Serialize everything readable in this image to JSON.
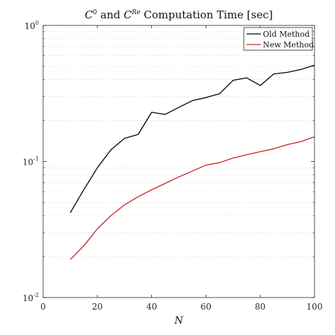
{
  "chart_data": {
    "type": "line",
    "title": {
      "p1": "C",
      "sup1": "0",
      "p2": " and ",
      "p3": "C",
      "sup2": "Re",
      "p4": " Computation Time [sec]"
    },
    "xlabel": "N",
    "ylabel": "",
    "xlim": [
      0,
      100
    ],
    "ylim": [
      0.01,
      1
    ],
    "yscale": "log",
    "x_ticks": [
      0,
      20,
      40,
      60,
      80,
      100
    ],
    "x_tick_labels": [
      "0",
      "20",
      "40",
      "60",
      "80",
      "100"
    ],
    "y_ticks": [
      {
        "value": 0.01,
        "base": "10",
        "exp": "-2"
      },
      {
        "value": 0.1,
        "base": "10",
        "exp": "-1"
      },
      {
        "value": 1,
        "base": "10",
        "exp": "0"
      }
    ],
    "grid": "minor-y",
    "legend_position": "top-right",
    "x": [
      10,
      15,
      20,
      25,
      30,
      35,
      40,
      45,
      50,
      55,
      60,
      65,
      70,
      75,
      80,
      85,
      90,
      95,
      100
    ],
    "series": [
      {
        "name": "Old Method",
        "color": "#000000",
        "values": [
          0.042,
          0.062,
          0.09,
          0.122,
          0.148,
          0.158,
          0.23,
          0.222,
          0.25,
          0.28,
          0.295,
          0.315,
          0.395,
          0.412,
          0.362,
          0.44,
          0.452,
          0.475,
          0.51
        ]
      },
      {
        "name": "New Method",
        "color": "#c8201e",
        "values": [
          0.019,
          0.024,
          0.032,
          0.04,
          0.048,
          0.055,
          0.062,
          0.069,
          0.077,
          0.085,
          0.094,
          0.098,
          0.106,
          0.112,
          0.118,
          0.124,
          0.133,
          0.14,
          0.152
        ]
      }
    ]
  }
}
